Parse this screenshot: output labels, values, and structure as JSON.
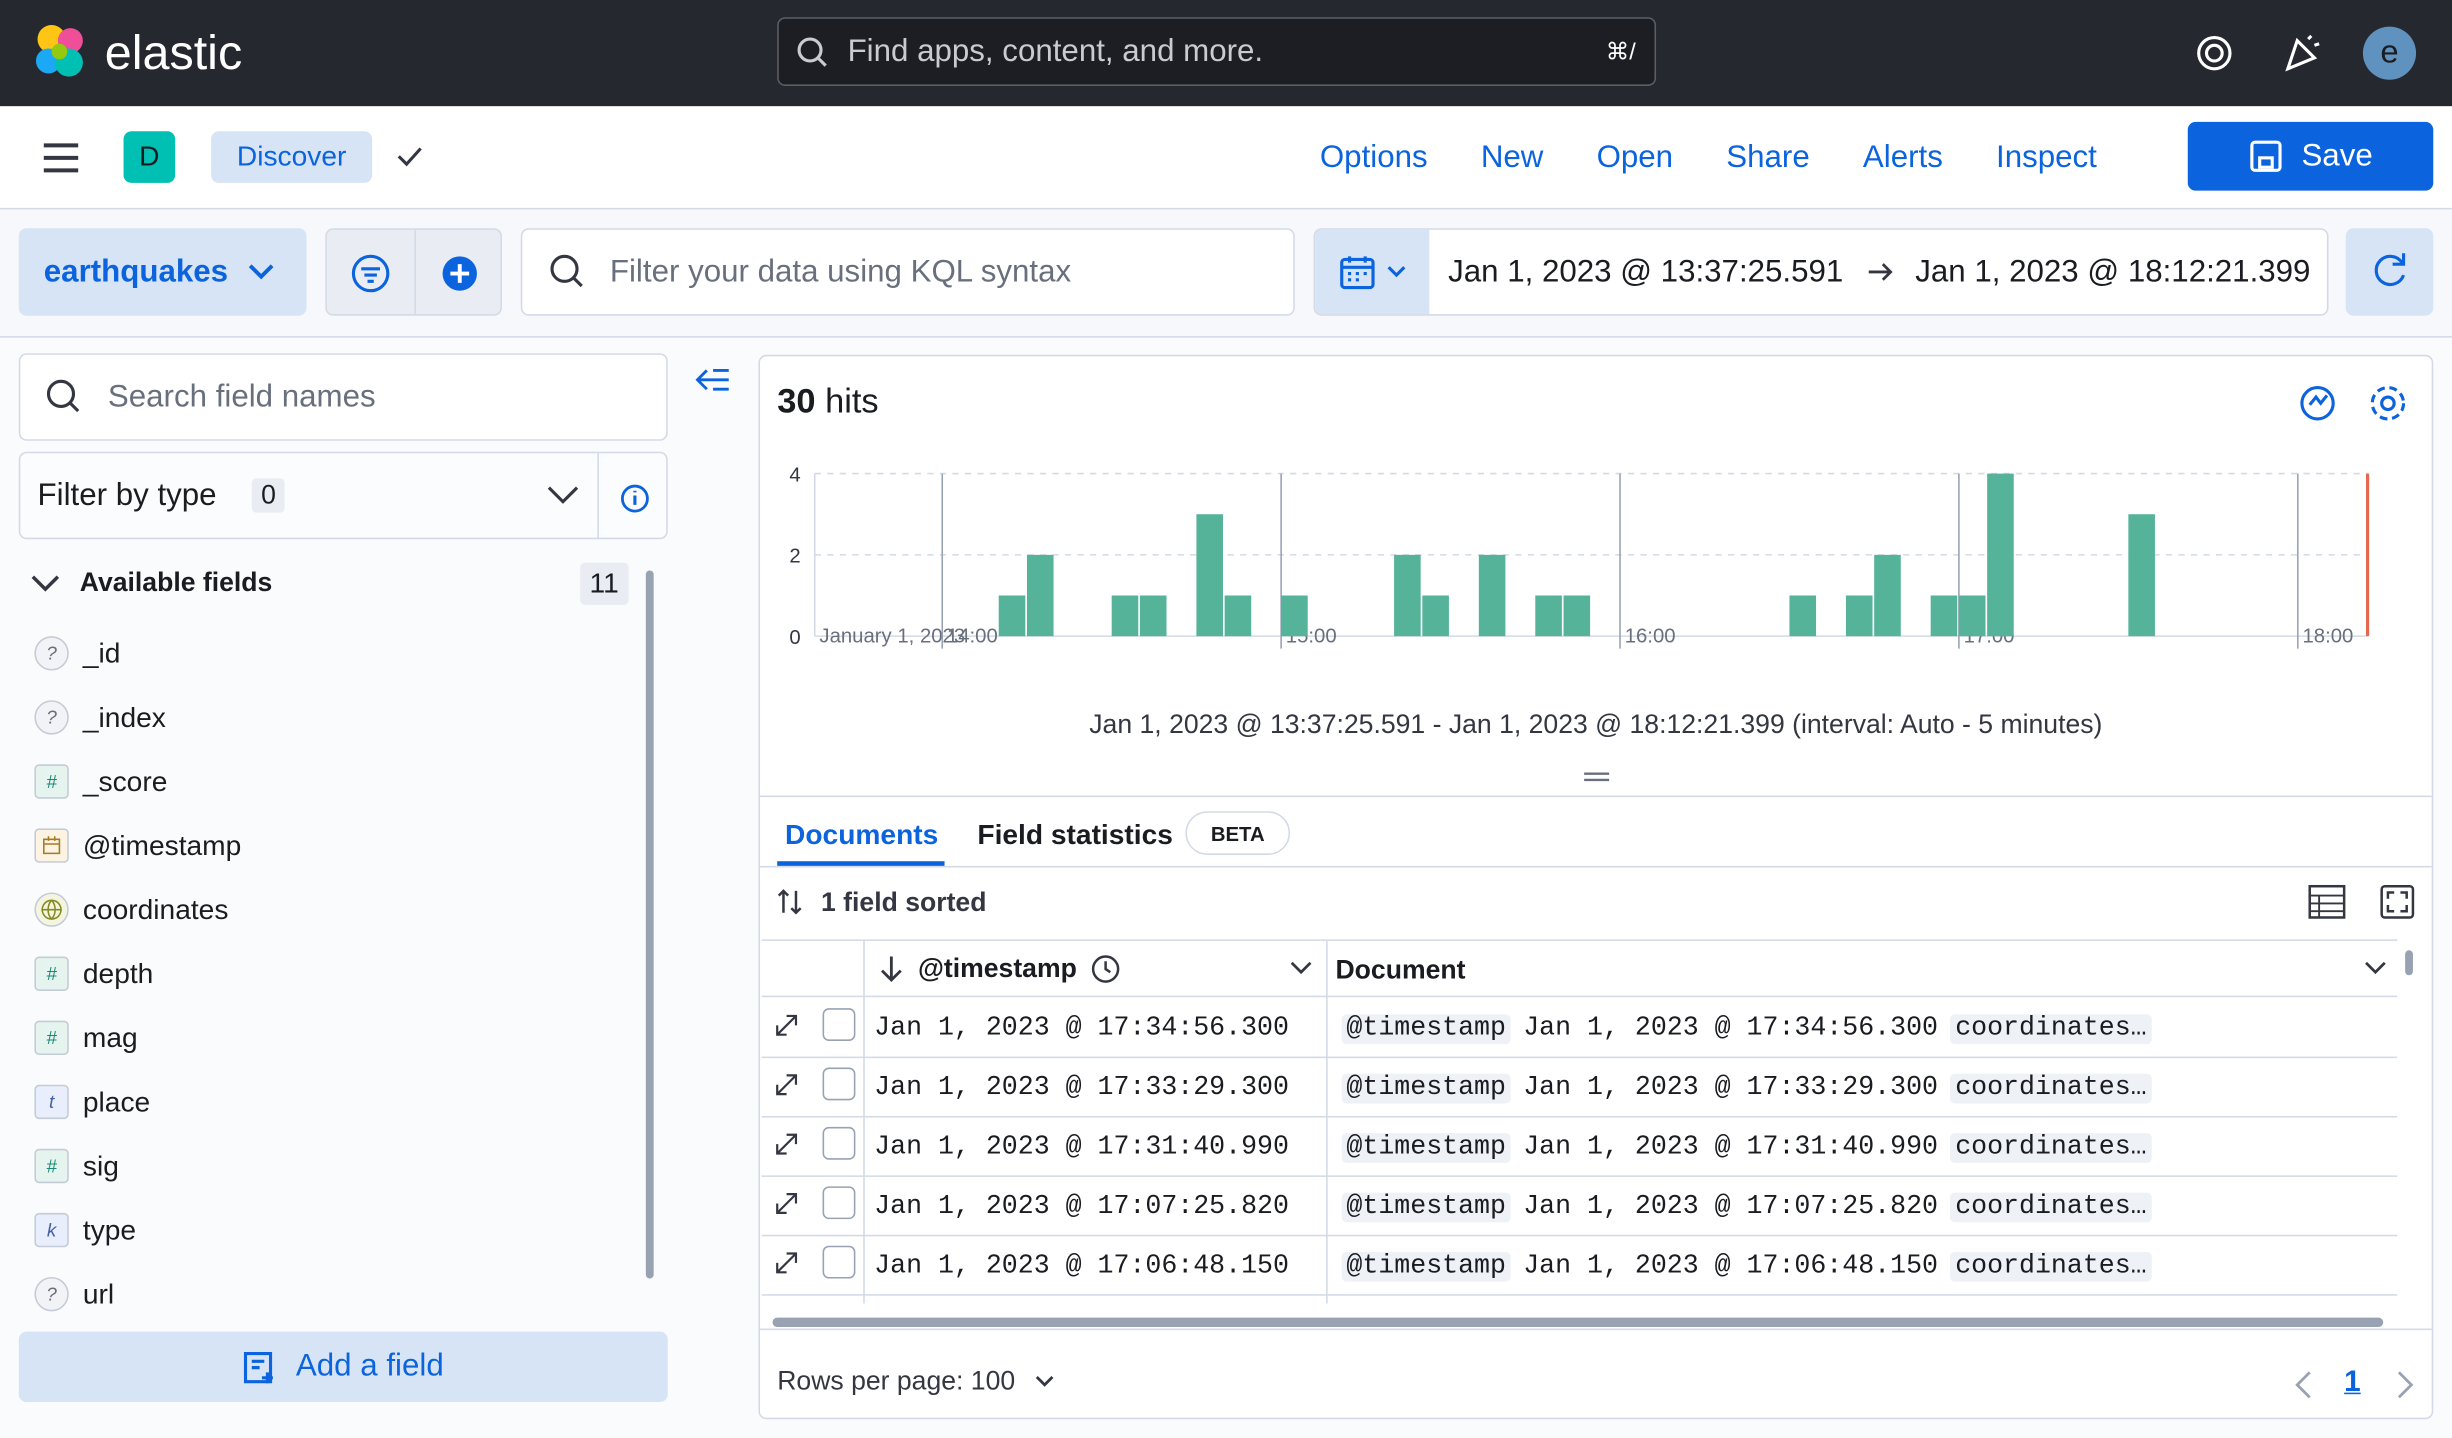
{
  "header": {
    "brand": "elastic",
    "search_placeholder": "Find apps, content, and more.",
    "shortcut": "⌘/",
    "avatar": "e"
  },
  "toolbar": {
    "space": "D",
    "app": "Discover",
    "menu": [
      "Options",
      "New",
      "Open",
      "Share",
      "Alerts",
      "Inspect"
    ],
    "save": "Save"
  },
  "query": {
    "data_view": "earthquakes",
    "placeholder": "Filter your data using KQL syntax",
    "start": "Jan 1, 2023 @ 13:37:25.591",
    "end": "Jan 1, 2023 @ 18:12:21.399"
  },
  "sidebar": {
    "search_placeholder": "Search field names",
    "filter_label": "Filter by type",
    "filter_count": 0,
    "available_label": "Available fields",
    "available_count": 11,
    "fields": [
      {
        "icon": "?",
        "name": "_id"
      },
      {
        "icon": "?",
        "name": "_index"
      },
      {
        "icon": "#",
        "name": "_score"
      },
      {
        "kind": "date",
        "name": "@timestamp"
      },
      {
        "kind": "geo",
        "name": "coordinates"
      },
      {
        "icon": "#",
        "name": "depth"
      },
      {
        "icon": "#",
        "name": "mag"
      },
      {
        "icon": "t",
        "name": "place"
      },
      {
        "icon": "#",
        "name": "sig"
      },
      {
        "icon": "k",
        "name": "type"
      },
      {
        "icon": "?",
        "name": "url"
      }
    ],
    "add_field": "Add a field"
  },
  "hits": {
    "count": 30,
    "label": "hits"
  },
  "chart_data": {
    "type": "bar",
    "color": "#54b399",
    "x": [
      "14:10",
      "14:15",
      "14:30",
      "14:35",
      "14:45",
      "14:50",
      "15:00",
      "15:20",
      "15:25",
      "15:35",
      "15:45",
      "15:50",
      "16:30",
      "16:40",
      "16:45",
      "16:55",
      "17:00",
      "17:05",
      "17:30"
    ],
    "values": [
      1,
      2,
      1,
      1,
      3,
      1,
      1,
      2,
      1,
      2,
      1,
      1,
      1,
      1,
      2,
      1,
      1,
      4,
      3
    ],
    "xlim": [
      "13:37:25.591",
      "18:12:21.399"
    ],
    "xticks": [
      "14:00",
      "15:00",
      "16:00",
      "17:00",
      "18:00"
    ],
    "date_label": "January 1, 2023",
    "ylim": [
      0,
      4
    ],
    "yticks": [
      0,
      2,
      4
    ],
    "grid": true,
    "caption": "Jan 1, 2023 @ 13:37:25.591 - Jan 1, 2023 @ 18:12:21.399 (interval: Auto - 5 minutes)"
  },
  "tabs": [
    "Documents",
    "Field statistics"
  ],
  "beta": "BETA",
  "table": {
    "sorted": "1 field sorted",
    "columns": [
      "@timestamp",
      "Document"
    ],
    "rows": [
      {
        "time": "Jan 1, 2023 @ 17:34:56.300",
        "doc_key": "@timestamp",
        "doc_value": "Jan 1, 2023 @ 17:34:56.300",
        "doc_more": "coordinates…"
      },
      {
        "time": "Jan 1, 2023 @ 17:33:29.300",
        "doc_key": "@timestamp",
        "doc_value": "Jan 1, 2023 @ 17:33:29.300",
        "doc_more": "coordinates…"
      },
      {
        "time": "Jan 1, 2023 @ 17:31:40.990",
        "doc_key": "@timestamp",
        "doc_value": "Jan 1, 2023 @ 17:31:40.990",
        "doc_more": "coordinates…"
      },
      {
        "time": "Jan 1, 2023 @ 17:07:25.820",
        "doc_key": "@timestamp",
        "doc_value": "Jan 1, 2023 @ 17:07:25.820",
        "doc_more": "coordinates…"
      },
      {
        "time": "Jan 1, 2023 @ 17:06:48.150",
        "doc_key": "@timestamp",
        "doc_value": "Jan 1, 2023 @ 17:06:48.150",
        "doc_more": "coordinates…"
      }
    ]
  },
  "footer": {
    "rows_per_page": "Rows per page: 100",
    "page": 1
  }
}
